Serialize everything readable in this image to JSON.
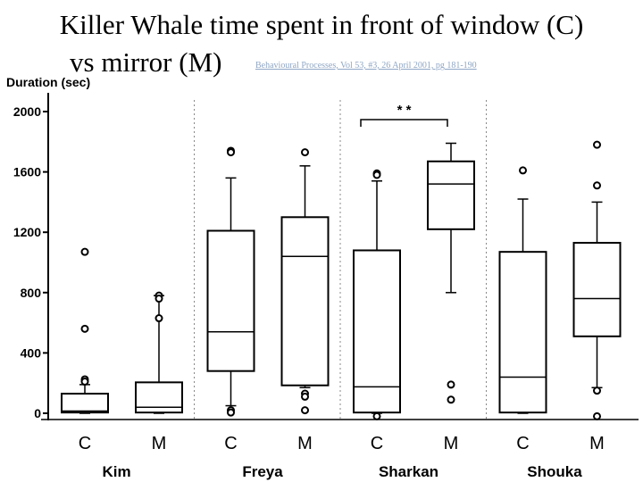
{
  "title_line1": "Killer Whale time spent in front of window (C)",
  "title_line2": "vs mirror (M)",
  "citation": "Behavioural Processes, Vol 53, #3, 26 April 2001, pg 181-190",
  "chart_data": {
    "type": "box",
    "title": "Killer Whale time spent in front of window (C) vs mirror (M)",
    "ylabel": "Duration (sec)",
    "ylim": [
      0,
      2000
    ],
    "yticks": [
      0,
      400,
      800,
      1200,
      1600,
      2000
    ],
    "ytick_labels": [
      "0",
      "400",
      "800",
      "1200",
      "1600",
      "2000"
    ],
    "groups": [
      "Kim",
      "Freya",
      "Sharkan",
      "Shouka"
    ],
    "conditions": [
      "C",
      "M"
    ],
    "significance": {
      "group": "Sharkan",
      "label": "* *"
    },
    "boxes": [
      {
        "group": "Kim",
        "condition": "C",
        "whisker_low": 0,
        "q1": 5,
        "median": 15,
        "q3": 130,
        "whisker_high": 190,
        "outliers": [
          1070,
          560,
          225,
          210
        ]
      },
      {
        "group": "Kim",
        "condition": "M",
        "whisker_low": 0,
        "q1": 5,
        "median": 40,
        "q3": 205,
        "whisker_high": 780,
        "outliers": [
          780,
          760,
          630
        ]
      },
      {
        "group": "Freya",
        "condition": "C",
        "whisker_low": 50,
        "q1": 280,
        "median": 540,
        "q3": 1210,
        "whisker_high": 1560,
        "outliers": [
          1740,
          1730,
          20,
          5
        ]
      },
      {
        "group": "Freya",
        "condition": "M",
        "whisker_low": 170,
        "q1": 185,
        "median": 1040,
        "q3": 1300,
        "whisker_high": 1640,
        "outliers": [
          1730,
          130,
          110,
          20
        ]
      },
      {
        "group": "Sharkan",
        "condition": "C",
        "whisker_low": 0,
        "q1": 5,
        "median": 175,
        "q3": 1080,
        "whisker_high": 1540,
        "outliers": [
          1590,
          1580,
          -20
        ]
      },
      {
        "group": "Sharkan",
        "condition": "M",
        "whisker_low": 800,
        "q1": 1220,
        "median": 1520,
        "q3": 1670,
        "whisker_high": 1790,
        "outliers": [
          190,
          90
        ]
      },
      {
        "group": "Shouka",
        "condition": "C",
        "whisker_low": 0,
        "q1": 5,
        "median": 240,
        "q3": 1070,
        "whisker_high": 1420,
        "outliers": [
          1610
        ]
      },
      {
        "group": "Shouka",
        "condition": "M",
        "whisker_low": 170,
        "q1": 510,
        "median": 760,
        "q3": 1130,
        "whisker_high": 1400,
        "outliers": [
          1780,
          1510,
          150,
          -20
        ]
      }
    ]
  }
}
